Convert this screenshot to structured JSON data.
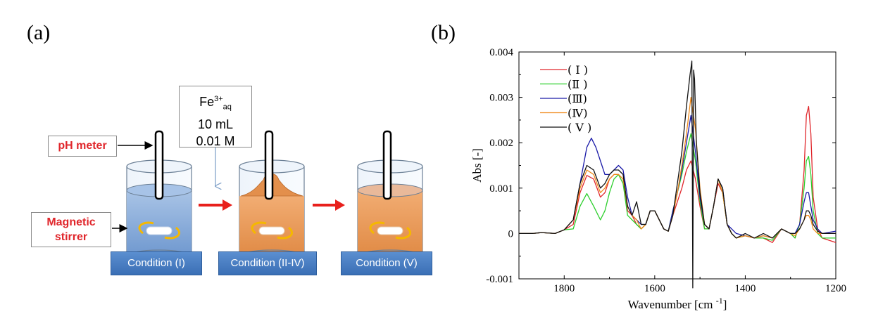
{
  "panel_a": {
    "letter": "(a)",
    "labels": {
      "ph_meter": "pH meter",
      "stirrer_line1": "Magnetic",
      "stirrer_line2": "stirrer"
    },
    "reagent": {
      "species": "Fe",
      "charge": "3+",
      "subscript": "aq",
      "volume": "10 mL",
      "concentration": "0.01 M"
    },
    "conditions": [
      "Condition (I)",
      "Condition (II-IV)",
      "Condition (V)"
    ],
    "colors": {
      "label_red": "#e0262b",
      "arrow_red": "#e8201c",
      "water_blue": "#8aaed8",
      "solution_orange": "#e8995a",
      "stir_yellow": "#f5b800",
      "box_blue": "#4a7fc3"
    }
  },
  "chart_data": {
    "letter": "(b)",
    "type": "line",
    "xlabel": "Wavenumber [cm",
    "xlabel_sup": "-1",
    "xlabel_end": "]",
    "ylabel": "Abs [-]",
    "xlim": [
      1900,
      1200
    ],
    "ylim": [
      -0.001,
      0.004
    ],
    "xticks": [
      1800,
      1600,
      1400,
      1200
    ],
    "yticks": [
      -0.001,
      0,
      0.001,
      0.002,
      0.003,
      0.004
    ],
    "ytick_labels": [
      "-0.001",
      "0",
      "0.001",
      "0.002",
      "0.003",
      "0.004"
    ],
    "legend_position": "top-left",
    "series": [
      {
        "name": "( Ⅰ )",
        "color": "#e0262b",
        "x": [
          1900,
          1870,
          1850,
          1820,
          1800,
          1780,
          1765,
          1750,
          1735,
          1720,
          1710,
          1700,
          1690,
          1680,
          1670,
          1660,
          1650,
          1640,
          1630,
          1620,
          1610,
          1600,
          1590,
          1580,
          1570,
          1560,
          1550,
          1540,
          1530,
          1520,
          1510,
          1500,
          1490,
          1480,
          1470,
          1460,
          1450,
          1440,
          1430,
          1420,
          1400,
          1380,
          1360,
          1340,
          1320,
          1300,
          1290,
          1280,
          1270,
          1265,
          1260,
          1255,
          1250,
          1240,
          1230,
          1200
        ],
        "y": [
          0,
          0,
          2e-05,
          0,
          8e-05,
          0.0002,
          0.0009,
          0.00128,
          0.0012,
          0.0008,
          0.0009,
          0.0012,
          0.0013,
          0.0013,
          0.0012,
          0.0005,
          0.0004,
          0.0002,
          0.0001,
          0.0002,
          0.0005,
          0.0005,
          0.0003,
          0.0001,
          5e-05,
          0.0004,
          0.0007,
          0.001,
          0.0014,
          0.0016,
          0.0012,
          0.0006,
          0.0001,
          0.0001,
          0.0006,
          0.0011,
          0.0009,
          0.0002,
          0,
          -0.0001,
          -5e-05,
          -0.0001,
          -0.0001,
          -0.0002,
          0.0001,
          0,
          -0.0001,
          0.0002,
          0.0014,
          0.0026,
          0.0028,
          0.0022,
          0.0008,
          0.0001,
          -0.0001,
          -0.0002
        ]
      },
      {
        "name": "(Ⅱ )",
        "color": "#2ccf2c",
        "x": [
          1900,
          1870,
          1850,
          1820,
          1800,
          1780,
          1765,
          1750,
          1735,
          1720,
          1710,
          1700,
          1690,
          1680,
          1670,
          1660,
          1650,
          1640,
          1630,
          1620,
          1610,
          1600,
          1590,
          1580,
          1570,
          1560,
          1550,
          1540,
          1530,
          1520,
          1510,
          1500,
          1490,
          1480,
          1470,
          1460,
          1450,
          1440,
          1430,
          1420,
          1400,
          1380,
          1360,
          1340,
          1320,
          1300,
          1290,
          1280,
          1270,
          1265,
          1260,
          1255,
          1250,
          1240,
          1230,
          1200
        ],
        "y": [
          0,
          0,
          2e-05,
          0,
          8e-05,
          0.0001,
          0.0006,
          0.00088,
          0.0006,
          0.0003,
          0.0005,
          0.0009,
          0.0012,
          0.0013,
          0.0011,
          0.0004,
          0.0003,
          0.0002,
          0.0001,
          0.0002,
          0.0005,
          0.0005,
          0.0003,
          0.0001,
          5e-05,
          0.0005,
          0.0009,
          0.0013,
          0.0018,
          0.0022,
          0.0016,
          0.0007,
          0.0001,
          0.0001,
          0.0006,
          0.0012,
          0.0009,
          0.0002,
          0,
          -0.0001,
          -5e-05,
          -0.0001,
          -0.0001,
          -0.00015,
          0.0001,
          0,
          -0.0001,
          0.0002,
          0.001,
          0.0016,
          0.0017,
          0.0013,
          0.0005,
          0,
          -0.0001,
          -0.0001
        ]
      },
      {
        "name": "(Ⅲ)",
        "color": "#1a1aa8",
        "x": [
          1900,
          1870,
          1850,
          1820,
          1800,
          1780,
          1765,
          1750,
          1740,
          1730,
          1720,
          1710,
          1700,
          1690,
          1680,
          1670,
          1660,
          1650,
          1640,
          1630,
          1620,
          1610,
          1600,
          1590,
          1580,
          1570,
          1560,
          1550,
          1540,
          1530,
          1520,
          1510,
          1500,
          1490,
          1480,
          1470,
          1460,
          1450,
          1440,
          1430,
          1420,
          1400,
          1380,
          1360,
          1340,
          1320,
          1300,
          1290,
          1280,
          1270,
          1265,
          1260,
          1255,
          1250,
          1240,
          1230,
          1200
        ],
        "y": [
          0,
          0,
          2e-05,
          0,
          8e-05,
          0.0003,
          0.0011,
          0.0019,
          0.0021,
          0.0019,
          0.0016,
          0.0013,
          0.0013,
          0.0014,
          0.0015,
          0.0014,
          0.0008,
          0.0004,
          0.0003,
          0.0002,
          0.0002,
          0.0005,
          0.0005,
          0.0003,
          0.0001,
          5e-05,
          0.0005,
          0.0009,
          0.0014,
          0.002,
          0.0026,
          0.0018,
          0.0008,
          0.0002,
          0.0001,
          0.0006,
          0.0012,
          0.001,
          0.0002,
          0.0001,
          0,
          -5e-05,
          -0.0001,
          -5e-05,
          -0.0001,
          0.0001,
          0,
          0,
          0.0002,
          0.0007,
          0.0009,
          0.0009,
          0.0006,
          0.0003,
          0.0001,
          0,
          5e-05
        ]
      },
      {
        "name": "(Ⅳ)",
        "color": "#f08a1a",
        "x": [
          1900,
          1870,
          1850,
          1820,
          1800,
          1780,
          1765,
          1750,
          1735,
          1720,
          1710,
          1700,
          1690,
          1680,
          1670,
          1660,
          1650,
          1640,
          1630,
          1620,
          1610,
          1600,
          1590,
          1580,
          1570,
          1560,
          1550,
          1540,
          1530,
          1520,
          1510,
          1500,
          1490,
          1480,
          1470,
          1460,
          1450,
          1440,
          1430,
          1420,
          1400,
          1380,
          1360,
          1340,
          1320,
          1300,
          1290,
          1280,
          1270,
          1265,
          1260,
          1255,
          1250,
          1240,
          1230,
          1200
        ],
        "y": [
          0,
          0,
          2e-05,
          0,
          8e-05,
          0.0003,
          0.001,
          0.0014,
          0.0013,
          0.0009,
          0.001,
          0.0012,
          0.0013,
          0.0013,
          0.0012,
          0.0006,
          0.0004,
          0.0003,
          0.0001,
          0.0002,
          0.0005,
          0.0005,
          0.0003,
          0.0001,
          5e-05,
          0.0004,
          0.0009,
          0.0015,
          0.0022,
          0.003,
          0.0023,
          0.001,
          0.0002,
          0.0001,
          0.0006,
          0.0012,
          0.0009,
          0.0002,
          0,
          -0.0001,
          -5e-05,
          -0.0001,
          -5e-05,
          -0.0001,
          0.0001,
          0,
          -5e-05,
          0.0001,
          0.0003,
          0.0004,
          0.0004,
          0.0003,
          0.0001,
          0,
          0,
          0
        ]
      },
      {
        "name": "( Ⅴ )",
        "color": "#111111",
        "x": [
          1900,
          1870,
          1850,
          1820,
          1800,
          1780,
          1765,
          1750,
          1735,
          1720,
          1710,
          1700,
          1690,
          1680,
          1670,
          1660,
          1650,
          1640,
          1630,
          1620,
          1610,
          1600,
          1590,
          1580,
          1570,
          1560,
          1550,
          1540,
          1530,
          1522,
          1518,
          1516,
          1514,
          1512,
          1508,
          1500,
          1490,
          1480,
          1470,
          1460,
          1450,
          1440,
          1430,
          1420,
          1400,
          1380,
          1360,
          1340,
          1320,
          1300,
          1290,
          1280,
          1270,
          1265,
          1260,
          1255,
          1250,
          1240,
          1230,
          1200
        ],
        "y": [
          0,
          0,
          2e-05,
          0,
          8e-05,
          0.0003,
          0.0011,
          0.0015,
          0.0014,
          0.001,
          0.0011,
          0.0013,
          0.0014,
          0.0014,
          0.0013,
          0.0006,
          0.0004,
          0.0007,
          0.0002,
          0.0002,
          0.0005,
          0.0005,
          0.0003,
          0.0001,
          5e-05,
          0.0004,
          0.0011,
          0.0018,
          0.0028,
          0.0035,
          0.0038,
          -0.0012,
          0.0036,
          0.0034,
          0.002,
          0.0009,
          0.0002,
          0.0001,
          0.0006,
          0.0012,
          0.001,
          0.0002,
          0,
          -0.0001,
          0,
          -0.0001,
          0,
          -0.0001,
          0.0001,
          0,
          0,
          0.0001,
          0.0003,
          0.0005,
          0.0005,
          0.0004,
          0.0002,
          5e-05,
          0,
          0
        ]
      }
    ]
  }
}
